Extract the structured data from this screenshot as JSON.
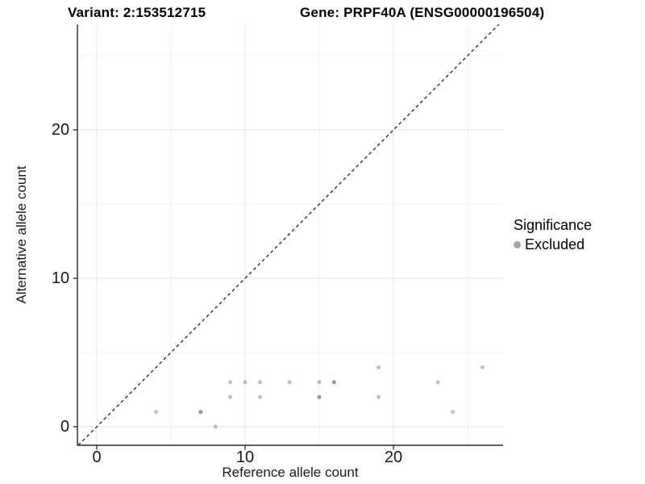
{
  "header": {
    "variant_title": "Variant: 2:153512715",
    "gene_title": "Gene: PRPF40A (ENSG00000196504)"
  },
  "legend": {
    "title": "Significance",
    "items": [
      {
        "label": "Excluded",
        "color": "#a6a6a6"
      }
    ]
  },
  "chart_data": {
    "type": "scatter",
    "xlabel": "Reference allele count",
    "ylabel": "Alternative allele count",
    "xlim": [
      -1.3,
      27.4
    ],
    "ylim": [
      -1.25,
      27.1
    ],
    "x_ticks": [
      0,
      10,
      20
    ],
    "y_ticks": [
      0,
      10,
      20
    ],
    "minor_ticks": [
      5,
      15,
      25
    ],
    "grid": true,
    "legend_position": "right",
    "identity_line": {
      "slope": 1,
      "intercept": 0,
      "style": "dashed",
      "color": "#111111"
    },
    "point_fill": "rgba(90,90,90,0.38)",
    "point_radius": 2.5,
    "series": [
      {
        "name": "Excluded",
        "points": [
          [
            4,
            1
          ],
          [
            7,
            1
          ],
          [
            7,
            1
          ],
          [
            8,
            0
          ],
          [
            9,
            2
          ],
          [
            9,
            3
          ],
          [
            10,
            3
          ],
          [
            11,
            2
          ],
          [
            11,
            3
          ],
          [
            13,
            3
          ],
          [
            15,
            2
          ],
          [
            15,
            2
          ],
          [
            15,
            3
          ],
          [
            16,
            3
          ],
          [
            16,
            3
          ],
          [
            19,
            2
          ],
          [
            19,
            4
          ],
          [
            23,
            3
          ],
          [
            24,
            1
          ],
          [
            26,
            4
          ]
        ]
      }
    ]
  }
}
